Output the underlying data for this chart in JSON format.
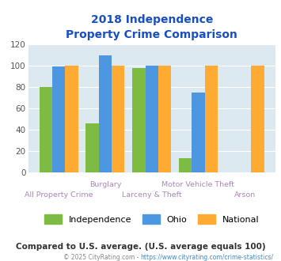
{
  "title_line1": "2018 Independence",
  "title_line2": "Property Crime Comparison",
  "independence": [
    80,
    46,
    98,
    13,
    0
  ],
  "ohio": [
    99,
    110,
    100,
    75,
    0
  ],
  "national": [
    100,
    100,
    100,
    100,
    100
  ],
  "independence_color": "#7dbb42",
  "ohio_color": "#4d96e0",
  "national_color": "#ffaa33",
  "bg_color": "#dde9f0",
  "ylim": [
    0,
    120
  ],
  "yticks": [
    0,
    20,
    40,
    60,
    80,
    100,
    120
  ],
  "title_color": "#1a4fc4",
  "xlabel_color_lower": "#aa88bb",
  "xlabel_color_upper": "#9966aa",
  "footer_color": "#333333",
  "copyright_color": "#888888",
  "copyright_url_color": "#4488cc",
  "footer_text": "Compared to U.S. average. (U.S. average equals 100)",
  "copyright_prefix": "© 2025 CityRating.com - ",
  "copyright_url": "https://www.cityrating.com/crime-statistics/"
}
